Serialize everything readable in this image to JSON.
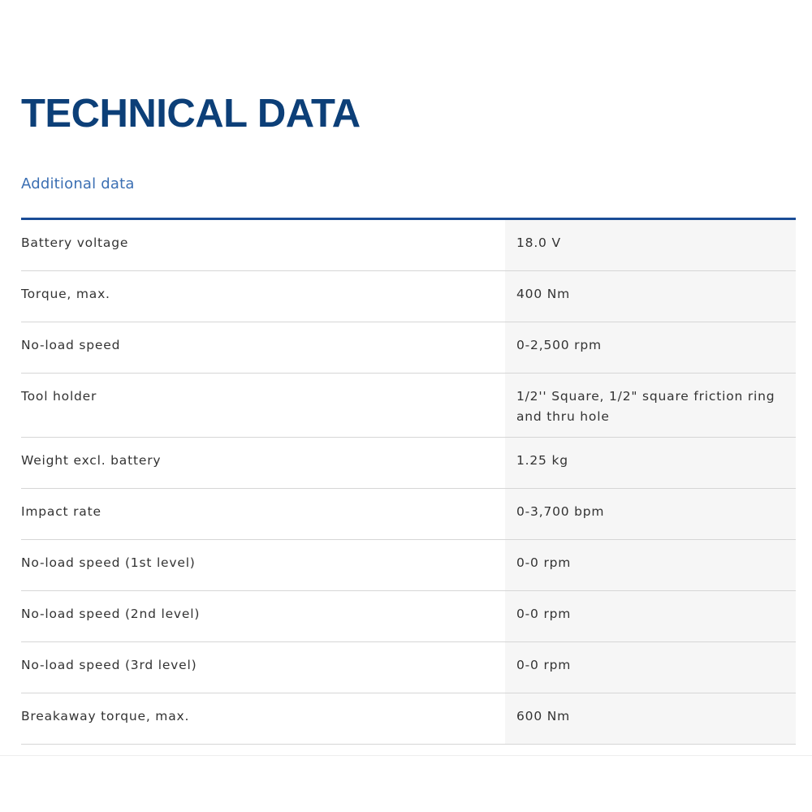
{
  "header": {
    "title": "TECHNICAL DATA",
    "subtitle": "Additional data"
  },
  "colors": {
    "title": "#0c3f78",
    "subtitle": "#3b6fb3",
    "header_rule": "#1a4c96",
    "value_column_bg": "#f6f6f6"
  },
  "rows": [
    {
      "label": "Battery voltage",
      "value": "18.0 V"
    },
    {
      "label": "Torque, max.",
      "value": "400 Nm"
    },
    {
      "label": "No-load speed",
      "value": "0-2,500 rpm"
    },
    {
      "label": "Tool holder",
      "value": "1/2'' Square, 1/2\" square friction ring and thru hole"
    },
    {
      "label": "Weight excl. battery",
      "value": "1.25 kg"
    },
    {
      "label": "Impact rate",
      "value": "0-3,700 bpm"
    },
    {
      "label": "No-load speed (1st level)",
      "value": "0-0 rpm"
    },
    {
      "label": "No-load speed (2nd level)",
      "value": "0-0 rpm"
    },
    {
      "label": "No-load speed (3rd level)",
      "value": "0-0 rpm"
    },
    {
      "label": "Breakaway torque, max.",
      "value": "600 Nm"
    }
  ]
}
